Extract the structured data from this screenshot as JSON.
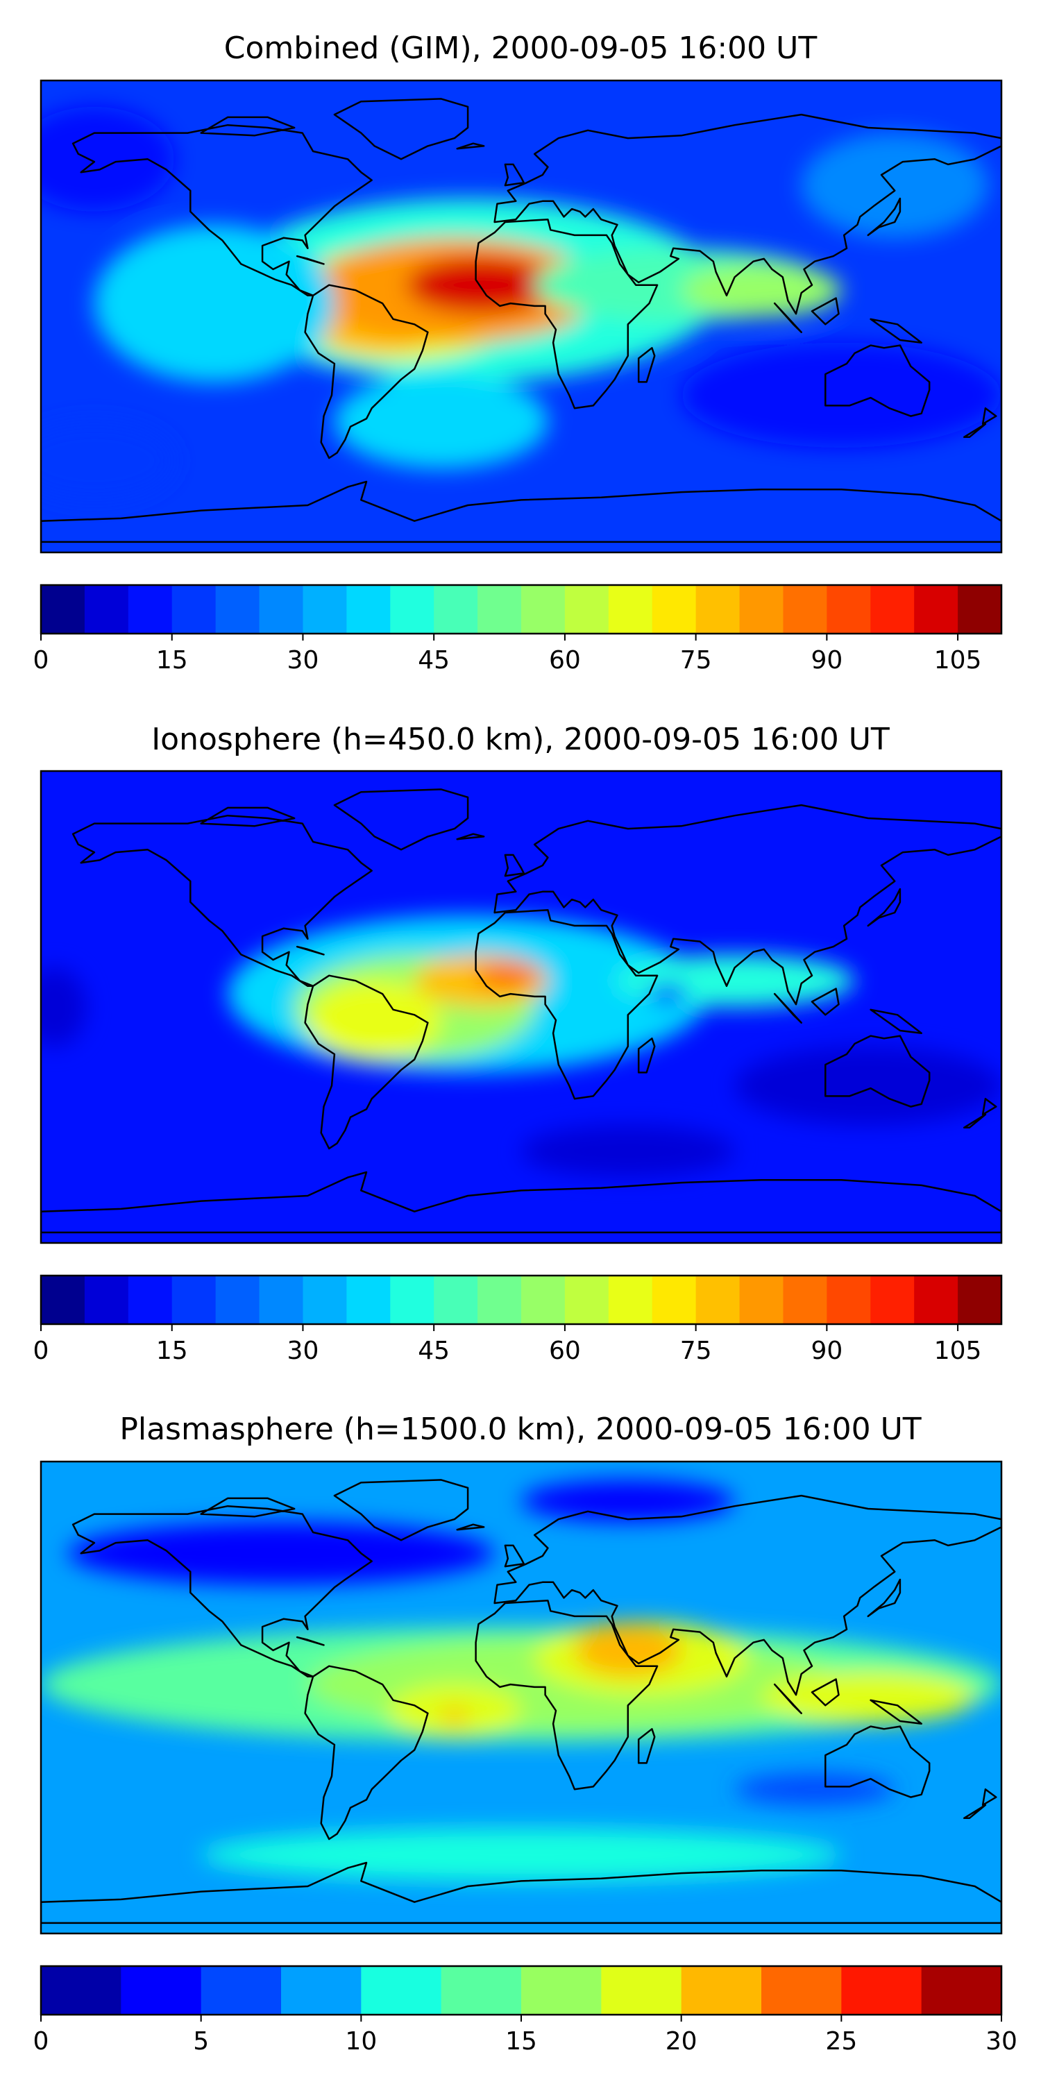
{
  "figure": {
    "background": "#ffffff",
    "land_outline_color": "#000000"
  },
  "chart_data": [
    {
      "type": "heatmap",
      "title": "Combined (GIM), 2000-09-05 16:00 UT",
      "colorbar": {
        "boundaries": [
          0,
          5,
          10,
          15,
          20,
          25,
          30,
          35,
          40,
          45,
          50,
          55,
          60,
          65,
          70,
          75,
          80,
          85,
          90,
          95,
          100,
          105,
          110
        ],
        "tick_labels": [
          "0",
          "15",
          "30",
          "45",
          "60",
          "75",
          "90",
          "105"
        ],
        "tick_values": [
          0,
          15,
          30,
          45,
          60,
          75,
          90,
          105
        ],
        "colors": [
          "#00008f",
          "#0000d8",
          "#0010ff",
          "#0038ff",
          "#0060ff",
          "#0088ff",
          "#00b0ff",
          "#00d8ff",
          "#20ffdf",
          "#48ffb7",
          "#70ff8f",
          "#98ff67",
          "#c0ff3f",
          "#e8ff17",
          "#ffe800",
          "#ffc000",
          "#ff9800",
          "#ff7000",
          "#ff4800",
          "#ff2000",
          "#d80000",
          "#8f0000"
        ]
      },
      "background_level": 15,
      "regions": [
        {
          "lon": -20,
          "lat": 10,
          "rlon": 95,
          "rlat": 35,
          "value": 40
        },
        {
          "lon": -45,
          "lat": 5,
          "rlon": 45,
          "rlat": 22,
          "value": 65
        },
        {
          "lon": -55,
          "lat": 0,
          "rlon": 28,
          "rlat": 14,
          "value": 75
        },
        {
          "lon": -25,
          "lat": 10,
          "rlon": 55,
          "rlat": 20,
          "value": 80
        },
        {
          "lon": -15,
          "lat": 12,
          "rlon": 28,
          "rlat": 11,
          "value": 100
        },
        {
          "lon": 60,
          "lat": 12,
          "rlon": 55,
          "rlat": 14,
          "value": 45
        },
        {
          "lon": 90,
          "lat": 10,
          "rlon": 30,
          "rlat": 10,
          "value": 55
        },
        {
          "lon": -115,
          "lat": 5,
          "rlon": 45,
          "rlat": 30,
          "value": 35
        },
        {
          "lon": -30,
          "lat": -40,
          "rlon": 40,
          "rlat": 18,
          "value": 35
        },
        {
          "lon": 140,
          "lat": 50,
          "rlon": 35,
          "rlat": 20,
          "value": 25
        },
        {
          "lon": -160,
          "lat": 60,
          "rlon": 30,
          "rlat": 20,
          "value": 10
        },
        {
          "lon": 120,
          "lat": -30,
          "rlon": 60,
          "rlat": 20,
          "value": 10
        },
        {
          "lon": -160,
          "lat": -55,
          "rlon": 30,
          "rlat": 15,
          "value": 15
        }
      ]
    },
    {
      "type": "heatmap",
      "title": "Ionosphere  (h=450.0 km), 2000-09-05 16:00 UT",
      "colorbar": {
        "boundaries": [
          0,
          5,
          10,
          15,
          20,
          25,
          30,
          35,
          40,
          45,
          50,
          55,
          60,
          65,
          70,
          75,
          80,
          85,
          90,
          95,
          100,
          105,
          110
        ],
        "tick_labels": [
          "0",
          "15",
          "30",
          "45",
          "60",
          "75",
          "90",
          "105"
        ],
        "tick_values": [
          0,
          15,
          30,
          45,
          60,
          75,
          90,
          105
        ],
        "colors": [
          "#00008f",
          "#0000d8",
          "#0010ff",
          "#0038ff",
          "#0060ff",
          "#0088ff",
          "#00b0ff",
          "#00d8ff",
          "#20ffdf",
          "#48ffb7",
          "#70ff8f",
          "#98ff67",
          "#c0ff3f",
          "#e8ff17",
          "#ffe800",
          "#ffc000",
          "#ff9800",
          "#ff7000",
          "#ff4800",
          "#ff2000",
          "#d80000",
          "#8f0000"
        ]
      },
      "background_level": 12,
      "regions": [
        {
          "lon": -20,
          "lat": 5,
          "rlon": 90,
          "rlat": 30,
          "value": 35
        },
        {
          "lon": -40,
          "lat": 0,
          "rlon": 45,
          "rlat": 20,
          "value": 55
        },
        {
          "lon": -55,
          "lat": -5,
          "rlon": 25,
          "rlat": 15,
          "value": 65
        },
        {
          "lon": -15,
          "lat": 10,
          "rlon": 25,
          "rlat": 10,
          "value": 75
        },
        {
          "lon": -5,
          "lat": 12,
          "rlon": 12,
          "rlat": 5,
          "value": 85
        },
        {
          "lon": 80,
          "lat": 10,
          "rlon": 45,
          "rlat": 10,
          "value": 40
        },
        {
          "lon": 55,
          "lat": 5,
          "rlon": 8,
          "rlat": 4,
          "value": 20
        },
        {
          "lon": -175,
          "lat": 0,
          "rlon": 12,
          "rlat": 15,
          "value": 8
        },
        {
          "lon": 130,
          "lat": -30,
          "rlon": 50,
          "rlat": 15,
          "value": 8
        },
        {
          "lon": 40,
          "lat": -55,
          "rlon": 40,
          "rlat": 10,
          "value": 8
        }
      ]
    },
    {
      "type": "heatmap",
      "title": "Plasmasphere (h=1500.0 km), 2000-09-05 16:00 UT",
      "colorbar": {
        "boundaries": [
          0,
          2.5,
          5,
          7.5,
          10,
          12.5,
          15,
          17.5,
          20,
          22.5,
          25,
          27.5,
          30
        ],
        "tick_labels": [
          "0",
          "5",
          "10",
          "15",
          "20",
          "25",
          "30"
        ],
        "tick_values": [
          0,
          5,
          10,
          15,
          20,
          25,
          30
        ],
        "colors": [
          "#0000a8",
          "#0000ff",
          "#0048ff",
          "#00a0ff",
          "#18ffe0",
          "#58ffa0",
          "#98ff60",
          "#e0ff18",
          "#ffb800",
          "#ff6800",
          "#ff1800",
          "#a80000"
        ]
      },
      "background_level": 8,
      "regions": [
        {
          "lon": 0,
          "lat": 5,
          "rlon": 180,
          "rlat": 22,
          "value": 13
        },
        {
          "lon": 20,
          "lat": 5,
          "rlon": 100,
          "rlat": 18,
          "value": 16
        },
        {
          "lon": 45,
          "lat": 15,
          "rlon": 40,
          "rlat": 14,
          "value": 19
        },
        {
          "lon": 40,
          "lat": 18,
          "rlon": 20,
          "rlat": 10,
          "value": 21
        },
        {
          "lon": -25,
          "lat": -5,
          "rlon": 25,
          "rlat": 10,
          "value": 18
        },
        {
          "lon": -25,
          "lat": -7,
          "rlon": 5,
          "rlat": 3,
          "value": 21
        },
        {
          "lon": 130,
          "lat": 0,
          "rlon": 40,
          "rlat": 10,
          "value": 18
        },
        {
          "lon": -90,
          "lat": 55,
          "rlon": 80,
          "rlat": 12,
          "value": 3
        },
        {
          "lon": 40,
          "lat": 75,
          "rlon": 40,
          "rlat": 8,
          "value": 3
        },
        {
          "lon": 0,
          "lat": -60,
          "rlon": 120,
          "rlat": 10,
          "value": 12
        },
        {
          "lon": 110,
          "lat": -35,
          "rlon": 30,
          "rlat": 6,
          "value": 6
        }
      ]
    }
  ]
}
